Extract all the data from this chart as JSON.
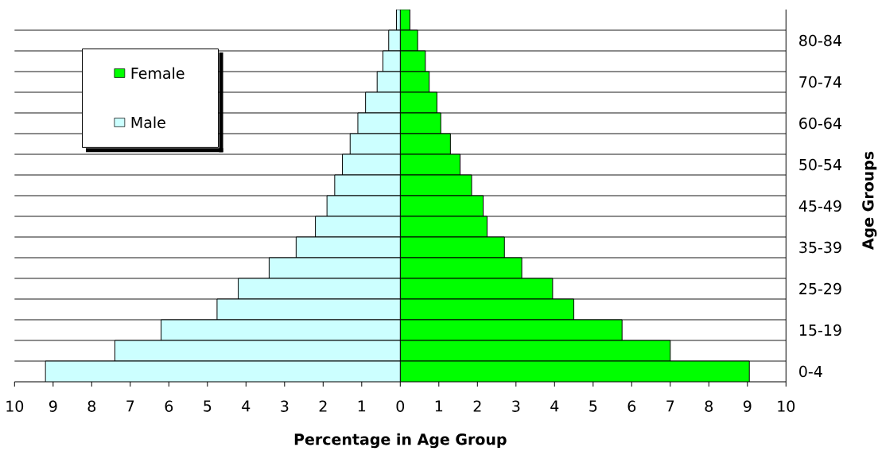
{
  "chart_data": {
    "type": "bar",
    "orientation": "horizontal",
    "stacked": true,
    "xlabel": "Percentage in Age Group",
    "ylabel": "Age Groups",
    "categories": [
      null,
      "80-84",
      null,
      "70-74",
      null,
      "60-64",
      null,
      "50-54",
      null,
      "45-49",
      null,
      "35-39",
      null,
      "25-29",
      null,
      "15-19",
      null,
      "0-4"
    ],
    "series": [
      {
        "name": "Female",
        "color": "#00ff00",
        "values": [
          0.25,
          0.45,
          0.65,
          0.75,
          0.95,
          1.05,
          1.3,
          1.55,
          1.85,
          2.15,
          2.25,
          2.7,
          3.15,
          3.95,
          4.5,
          5.75,
          7.0,
          9.05
        ]
      },
      {
        "name": "Male",
        "color": "#ccffff",
        "values": [
          -0.1,
          -0.3,
          -0.45,
          -0.6,
          -0.9,
          -1.1,
          -1.3,
          -1.5,
          -1.7,
          -1.9,
          -2.2,
          -2.7,
          -3.4,
          -4.2,
          -4.75,
          -6.2,
          -7.4,
          -9.2
        ]
      }
    ],
    "xlim": [
      -10,
      10
    ],
    "xticks": [
      {
        "value": -10,
        "label": "10"
      },
      {
        "value": -9,
        "label": "9"
      },
      {
        "value": -8,
        "label": "8"
      },
      {
        "value": -7,
        "label": "7"
      },
      {
        "value": -6,
        "label": "6"
      },
      {
        "value": -5,
        "label": "5"
      },
      {
        "value": -4,
        "label": "4"
      },
      {
        "value": -3,
        "label": "3"
      },
      {
        "value": -2,
        "label": "2"
      },
      {
        "value": -1,
        "label": "1"
      },
      0,
      1,
      2,
      3,
      4,
      5,
      6,
      7,
      8,
      9,
      10
    ],
    "grid": "y",
    "legend": "top left"
  }
}
